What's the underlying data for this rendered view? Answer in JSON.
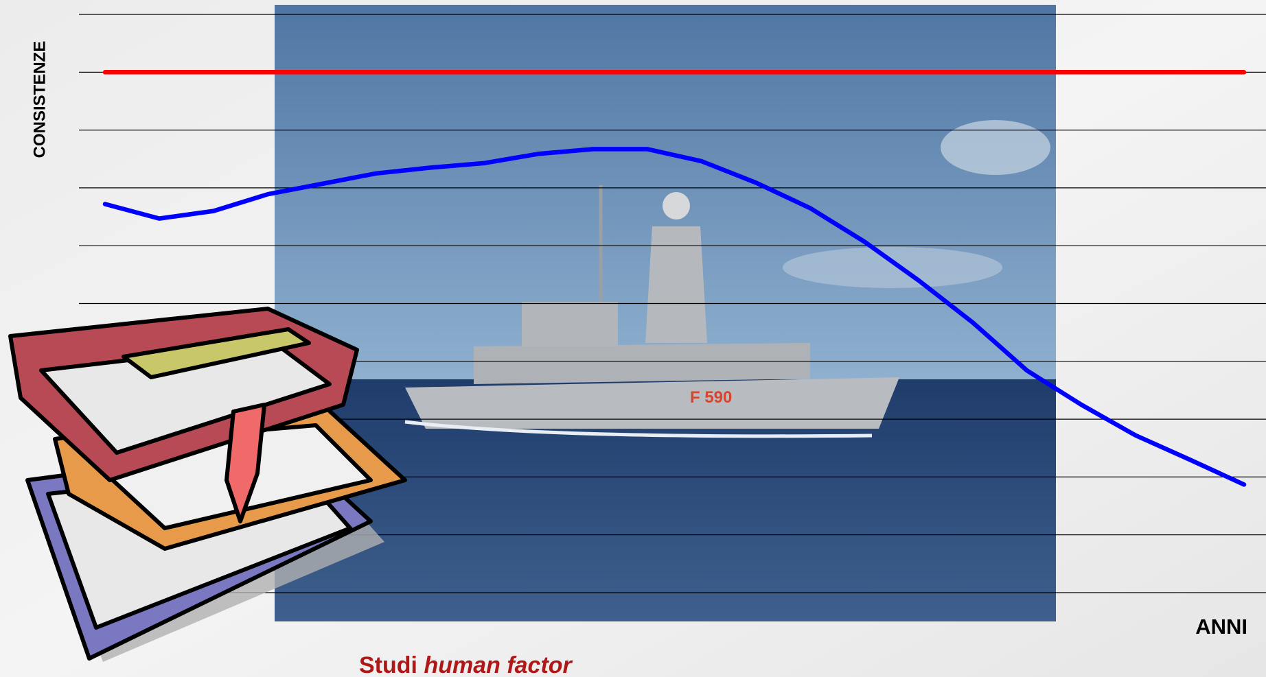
{
  "chart_data": {
    "type": "line",
    "y_label": "CONSISTENZE",
    "x_label": "ANNI",
    "categories": [
      null,
      null,
      null,
      null,
      null,
      null,
      null,
      null,
      null,
      null,
      null,
      null,
      null,
      null,
      null,
      null,
      null,
      null,
      null,
      null,
      null,
      null
    ],
    "series": [
      {
        "color": "#ff0000",
        "values": [
          9,
          9,
          9,
          9,
          9,
          9,
          9,
          9,
          9,
          9,
          9,
          9,
          9,
          9,
          9,
          9,
          9,
          9,
          9,
          9,
          9,
          9
        ]
      },
      {
        "color": "#0000ff",
        "values": [
          6.72,
          6.47,
          6.6,
          6.89,
          7.07,
          7.25,
          7.35,
          7.43,
          7.59,
          7.67,
          7.67,
          7.46,
          7.09,
          6.65,
          6.07,
          5.4,
          4.67,
          3.84,
          3.25,
          2.72,
          2.3,
          1.87
        ]
      }
    ],
    "ylim": [
      0,
      10
    ],
    "yticks": [
      0,
      1,
      2,
      3,
      4,
      5,
      6,
      7,
      8,
      9,
      10
    ],
    "grid": true
  },
  "caption": {
    "text": "Studi",
    "emphasis": "human factor"
  }
}
